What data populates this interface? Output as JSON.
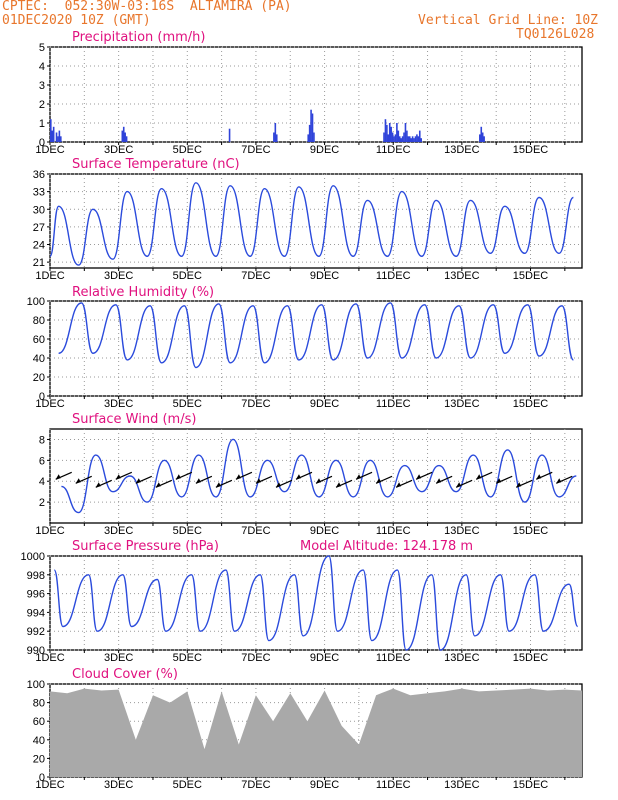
{
  "header": {
    "source": "CPTEC:",
    "coords": "052:30W-03:16S",
    "station": "ALTAMIRA (PA)",
    "datetime": "01DEC2020 10Z (GMT)",
    "grid_note": "Vertical Grid Line: 10Z",
    "code": "TQ0126L028"
  },
  "model_altitude": "Model Altitude: 124.178 m",
  "colors": {
    "header": "#e8762c",
    "title": "#e0117f",
    "line": "#2b4bdc",
    "bars": "#2f43d9",
    "cloud": "#a9a9a9",
    "axis": "#000000",
    "grid": "#9a9a9a"
  },
  "chart_data": [
    {
      "type": "bar",
      "title": "Precipitation (mm/h)",
      "ylim": [
        0,
        5
      ],
      "yticks": [
        "0",
        "1",
        "2",
        "3",
        "4",
        "5"
      ],
      "xtick_labels": [
        "1DEC",
        "3DEC",
        "5DEC",
        "7DEC",
        "9DEC",
        "11DEC",
        "13DEC",
        "15DEC"
      ],
      "unit_x": "hours since 01DEC2020 10Z",
      "x": [
        0,
        1,
        2,
        4,
        5,
        6,
        7,
        50,
        51,
        52,
        53,
        125,
        156,
        157,
        158,
        180,
        181,
        182,
        183,
        184,
        233,
        234,
        235,
        236,
        237,
        238,
        239,
        240,
        241,
        242,
        243,
        244,
        245,
        246,
        247,
        248,
        249,
        250,
        251,
        252,
        253,
        254,
        255,
        256,
        257,
        258,
        259,
        300,
        301,
        302,
        303
      ],
      "values": [
        1.2,
        0.6,
        0.8,
        0.5,
        0.3,
        0.6,
        0.3,
        0.6,
        0.8,
        0.5,
        0.3,
        0.7,
        0.5,
        1.0,
        0.4,
        0.4,
        0.9,
        1.7,
        1.5,
        0.5,
        0.5,
        1.2,
        0.9,
        0.4,
        1.0,
        0.8,
        0.5,
        0.3,
        0.4,
        1.0,
        0.6,
        0.3,
        0.2,
        0.3,
        0.5,
        1.0,
        0.6,
        0.3,
        0.3,
        0.2,
        0.3,
        0.2,
        0.3,
        0.4,
        0.3,
        0.6,
        0.2,
        0.4,
        0.8,
        0.5,
        0.3
      ]
    },
    {
      "type": "line",
      "title": "Surface Temperature (nC)",
      "ylim": [
        20,
        36
      ],
      "yticks": [
        "21",
        "24",
        "27",
        "30",
        "33",
        "36"
      ],
      "xtick_labels": [
        "1DEC",
        "3DEC",
        "5DEC",
        "7DEC",
        "9DEC",
        "11DEC",
        "13DEC",
        "15DEC"
      ],
      "daily_max": [
        30.5,
        30.0,
        33.0,
        33.5,
        34.5,
        34.0,
        33.5,
        33.8,
        34.0,
        31.5,
        33.0,
        31.5,
        31.5,
        30.5,
        32.0,
        32.0
      ],
      "daily_min": [
        20.5,
        21.5,
        22.0,
        22.0,
        22.0,
        22.0,
        22.0,
        22.0,
        22.0,
        22.0,
        22.0,
        22.0,
        22.5,
        22.5,
        22.5,
        22.5
      ]
    },
    {
      "type": "line",
      "title": "Relative Humidity (%)",
      "ylim": [
        0,
        100
      ],
      "yticks": [
        "0",
        "20",
        "40",
        "60",
        "80",
        "100"
      ],
      "xtick_labels": [
        "1DEC",
        "3DEC",
        "5DEC",
        "7DEC",
        "9DEC",
        "11DEC",
        "13DEC",
        "15DEC"
      ],
      "daily_max": [
        98,
        96,
        95,
        95,
        97,
        95,
        95,
        96,
        97,
        98,
        96,
        95,
        96,
        96,
        95,
        95
      ],
      "daily_min": [
        45,
        45,
        38,
        35,
        30,
        35,
        35,
        38,
        38,
        40,
        40,
        40,
        40,
        45,
        42,
        38
      ]
    },
    {
      "type": "line",
      "title": "Surface Wind (m/s)",
      "ylim": [
        0,
        9
      ],
      "yticks": [
        "2",
        "4",
        "6",
        "8"
      ],
      "xtick_labels": [
        "1DEC",
        "3DEC",
        "5DEC",
        "7DEC",
        "9DEC",
        "11DEC",
        "13DEC",
        "15DEC"
      ],
      "daily_max": [
        3.5,
        6.5,
        4.5,
        6.0,
        6.5,
        8.0,
        6.0,
        6.5,
        6.0,
        6.0,
        5.5,
        5.5,
        6.5,
        7.0,
        6.5,
        4.5
      ],
      "daily_min": [
        1.0,
        3.0,
        2.0,
        2.5,
        2.5,
        2.5,
        3.0,
        2.5,
        2.5,
        2.5,
        3.0,
        3.0,
        2.5,
        2.0,
        2.5,
        3.0
      ]
    },
    {
      "type": "line",
      "title": "Surface Pressure (hPa)",
      "ylim": [
        990,
        1000
      ],
      "yticks": [
        "990",
        "992",
        "994",
        "996",
        "998",
        "1000"
      ],
      "xtick_labels": [
        "1DEC",
        "3DEC",
        "5DEC",
        "7DEC",
        "9DEC",
        "11DEC",
        "13DEC",
        "15DEC"
      ],
      "daily_max": [
        998.5,
        998.0,
        998.0,
        997.5,
        998.0,
        998.5,
        998.0,
        998.0,
        1000.0,
        998.5,
        998.5,
        998.0,
        998.0,
        998.0,
        998.0,
        997.0
      ],
      "daily_min": [
        992.5,
        992.0,
        992.5,
        992.0,
        992.0,
        992.0,
        991.0,
        991.5,
        992.0,
        991.0,
        990.0,
        990.0,
        991.5,
        992.0,
        992.0,
        992.5
      ]
    },
    {
      "type": "area",
      "title": "Cloud Cover (%)",
      "ylim": [
        0,
        100
      ],
      "yticks": [
        "0",
        "20",
        "40",
        "60",
        "80",
        "100"
      ],
      "xtick_labels": [
        "1DEC",
        "3DEC",
        "5DEC",
        "7DEC",
        "9DEC",
        "11DEC",
        "13DEC",
        "15DEC"
      ],
      "x_hours": [
        0,
        12,
        24,
        36,
        48,
        60,
        72,
        84,
        96,
        108,
        120,
        132,
        144,
        156,
        168,
        180,
        192,
        204,
        216,
        228,
        240,
        252,
        264,
        276,
        288,
        300,
        312,
        324,
        336,
        348,
        360,
        372
      ],
      "values": [
        92,
        90,
        95,
        93,
        94,
        40,
        88,
        80,
        92,
        30,
        92,
        35,
        88,
        60,
        90,
        60,
        93,
        55,
        35,
        88,
        95,
        88,
        90,
        92,
        95,
        92,
        93,
        94,
        95,
        93,
        94,
        93
      ]
    }
  ]
}
